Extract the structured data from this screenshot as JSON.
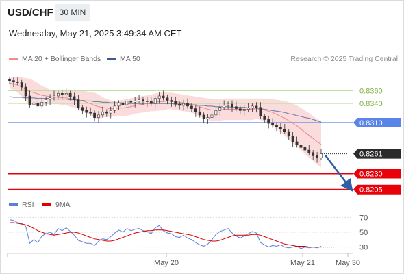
{
  "header": {
    "symbol": "USD/CHF",
    "timeframe": "30 MIN",
    "datetime": "Wednesday, May 21, 2025 3:49:34 AM CET",
    "copyright": "Research © 2025 Trading Central"
  },
  "legend_main": [
    {
      "label": "MA 20 + Bollinger Bands",
      "color": "#f08c8c"
    },
    {
      "label": "MA 50",
      "color": "#3b5b8c"
    }
  ],
  "legend_rsi": [
    {
      "label": "RSI",
      "color": "#5b7fd6"
    },
    {
      "label": "9MA",
      "color": "#e00000"
    }
  ],
  "colors": {
    "up_candle": "#ffffff",
    "down_candle": "#333333",
    "bollinger_fill": "#fbdcdc",
    "resistance_line": "#bfe0a0",
    "current_line": "#5b84e8",
    "support_line": "#e8000a",
    "arrow": "#2f5fa8"
  },
  "chart_data": [
    {
      "type": "line",
      "title": "",
      "description_type": "candlestick with MA 20, Bollinger Bands and MA 50",
      "ylim": [
        0.8195,
        0.8395
      ],
      "x_ticks": [
        "May 20",
        "May 21",
        "May 30"
      ],
      "levels": {
        "resistance": [
          0.836,
          0.834
        ],
        "pivot": 0.831,
        "current": 0.8261,
        "support": [
          0.823,
          0.8205
        ]
      },
      "level_labels": [
        "0.8360",
        "0.8340",
        "0.8310",
        "0.8261",
        "0.8230",
        "0.8205"
      ],
      "close": [
        0.8376,
        0.8374,
        0.8373,
        0.8366,
        0.8352,
        0.8338,
        0.8341,
        0.8336,
        0.8342,
        0.8346,
        0.8349,
        0.8352,
        0.8356,
        0.8354,
        0.8356,
        0.8351,
        0.8346,
        0.8334,
        0.8329,
        0.8326,
        0.8325,
        0.8318,
        0.8322,
        0.8327,
        0.8325,
        0.8329,
        0.8336,
        0.8341,
        0.8338,
        0.8344,
        0.8342,
        0.8344,
        0.8346,
        0.8344,
        0.8343,
        0.834,
        0.8348,
        0.8352,
        0.8349,
        0.8345,
        0.8343,
        0.8339,
        0.8337,
        0.834,
        0.8336,
        0.8332,
        0.8327,
        0.8322,
        0.8316,
        0.8318,
        0.8322,
        0.8329,
        0.8334,
        0.8337,
        0.8339,
        0.8335,
        0.8332,
        0.8329,
        0.8331,
        0.8333,
        0.8336,
        0.8334,
        0.832,
        0.8315,
        0.8309,
        0.8306,
        0.8303,
        0.83,
        0.8296,
        0.8289,
        0.828,
        0.8275,
        0.8271,
        0.8267,
        0.8263,
        0.8258,
        0.8255,
        0.8261
      ],
      "ma20": [
        0.8372,
        0.8371,
        0.8369,
        0.8366,
        0.8362,
        0.8359,
        0.8357,
        0.8355,
        0.8353,
        0.8352,
        0.8351,
        0.835,
        0.835,
        0.8349,
        0.8349,
        0.8348,
        0.8347,
        0.8346,
        0.8344,
        0.8342,
        0.834,
        0.8337,
        0.8335,
        0.8334,
        0.8333,
        0.8332,
        0.8332,
        0.8333,
        0.8333,
        0.8334,
        0.8335,
        0.8337,
        0.8338,
        0.8339,
        0.834,
        0.8341,
        0.8342,
        0.8343,
        0.8343,
        0.8344,
        0.8344,
        0.8343,
        0.8342,
        0.8341,
        0.834,
        0.8339,
        0.8337,
        0.8335,
        0.8333,
        0.8331,
        0.833,
        0.833,
        0.833,
        0.8331,
        0.8331,
        0.8331,
        0.8331,
        0.8331,
        0.8331,
        0.8331,
        0.8331,
        0.8332,
        0.8331,
        0.833,
        0.8328,
        0.8326,
        0.8323,
        0.832,
        0.8317,
        0.8313,
        0.8309,
        0.8305,
        0.83,
        0.8295,
        0.829,
        0.8285,
        0.828,
        0.8276
      ],
      "bb_upper": [
        0.838,
        0.8381,
        0.8381,
        0.8381,
        0.838,
        0.8379,
        0.8376,
        0.8372,
        0.8368,
        0.8365,
        0.8362,
        0.8361,
        0.8361,
        0.8361,
        0.8361,
        0.8361,
        0.836,
        0.836,
        0.836,
        0.8359,
        0.8358,
        0.8357,
        0.8354,
        0.835,
        0.8347,
        0.8345,
        0.8344,
        0.8345,
        0.8346,
        0.8347,
        0.8348,
        0.835,
        0.8351,
        0.8352,
        0.8353,
        0.8354,
        0.8356,
        0.8357,
        0.8357,
        0.8357,
        0.8357,
        0.8356,
        0.8355,
        0.8354,
        0.8353,
        0.8352,
        0.8351,
        0.835,
        0.8349,
        0.8348,
        0.8348,
        0.8347,
        0.8347,
        0.8348,
        0.8348,
        0.8348,
        0.8348,
        0.8348,
        0.8348,
        0.8348,
        0.8348,
        0.8348,
        0.8348,
        0.8348,
        0.8347,
        0.8347,
        0.8346,
        0.8345,
        0.8344,
        0.8342,
        0.834,
        0.8337,
        0.8333,
        0.8329,
        0.8325,
        0.832,
        0.8316,
        0.8312
      ],
      "bb_lower": [
        0.8364,
        0.8361,
        0.8357,
        0.8351,
        0.8344,
        0.8339,
        0.8338,
        0.8338,
        0.8338,
        0.8339,
        0.834,
        0.8339,
        0.8339,
        0.8337,
        0.8337,
        0.8335,
        0.8334,
        0.8332,
        0.8328,
        0.8325,
        0.8322,
        0.8317,
        0.8316,
        0.8318,
        0.8319,
        0.8319,
        0.832,
        0.8321,
        0.832,
        0.8321,
        0.8322,
        0.8324,
        0.8325,
        0.8326,
        0.8327,
        0.8328,
        0.8328,
        0.8329,
        0.8329,
        0.8331,
        0.8331,
        0.833,
        0.8329,
        0.8328,
        0.8327,
        0.8326,
        0.8323,
        0.832,
        0.8317,
        0.8314,
        0.8312,
        0.8313,
        0.8313,
        0.8314,
        0.8314,
        0.8314,
        0.8314,
        0.8314,
        0.8314,
        0.8314,
        0.8314,
        0.8316,
        0.8314,
        0.8312,
        0.8309,
        0.8305,
        0.83,
        0.8295,
        0.829,
        0.8284,
        0.8278,
        0.8273,
        0.8267,
        0.8261,
        0.8255,
        0.825,
        0.8244,
        0.824
      ],
      "ma50": [
        0.8351,
        0.835,
        0.835,
        0.835,
        0.8349,
        0.8349,
        0.8349,
        0.8348,
        0.8348,
        0.8348,
        0.8348,
        0.8347,
        0.8347,
        0.8347,
        0.8347,
        0.8346,
        0.8346,
        0.8345,
        0.8345,
        0.8344,
        0.8344,
        0.8343,
        0.8343,
        0.8342,
        0.8342,
        0.8341,
        0.8341,
        0.8341,
        0.8341,
        0.834,
        0.834,
        0.834,
        0.834,
        0.834,
        0.834,
        0.834,
        0.834,
        0.834,
        0.834,
        0.834,
        0.834,
        0.8339,
        0.8339,
        0.8339,
        0.8339,
        0.8338,
        0.8338,
        0.8337,
        0.8337,
        0.8336,
        0.8336,
        0.8335,
        0.8335,
        0.8335,
        0.8335,
        0.8334,
        0.8334,
        0.8334,
        0.8334,
        0.8333,
        0.8333,
        0.8333,
        0.8332,
        0.8331,
        0.833,
        0.8329,
        0.8328,
        0.8327,
        0.8326,
        0.8324,
        0.8323,
        0.8321,
        0.832,
        0.8318,
        0.8317,
        0.8315,
        0.8313,
        0.8311
      ]
    },
    {
      "type": "line",
      "title": "",
      "series_note": "RSI panel",
      "ylim": [
        25,
        75
      ],
      "y_ticks": [
        70,
        50,
        30
      ],
      "series": [
        {
          "name": "RSI",
          "values": [
            67,
            66,
            63,
            62,
            58,
            35,
            40,
            36,
            45,
            48,
            50,
            47,
            55,
            52,
            56,
            51,
            46,
            39,
            37,
            35,
            35,
            32,
            38,
            41,
            40,
            44,
            49,
            53,
            50,
            55,
            52,
            54,
            55,
            52,
            51,
            48,
            56,
            59,
            52,
            49,
            48,
            44,
            43,
            46,
            42,
            40,
            36,
            33,
            31,
            34,
            40,
            47,
            51,
            53,
            55,
            49,
            45,
            42,
            45,
            48,
            51,
            49,
            36,
            33,
            30,
            32,
            31,
            33,
            30,
            29,
            30,
            31,
            28,
            30,
            29,
            30,
            29,
            31
          ]
        },
        {
          "name": "9MA",
          "values": [
            63,
            63,
            62,
            61,
            60,
            58,
            55,
            52,
            50,
            48,
            47,
            46,
            47,
            48,
            49,
            50,
            50,
            49,
            47,
            45,
            43,
            41,
            40,
            39,
            38,
            38,
            39,
            41,
            43,
            45,
            47,
            49,
            50,
            51,
            52,
            52,
            53,
            53,
            53,
            52,
            51,
            50,
            49,
            48,
            47,
            46,
            44,
            42,
            40,
            39,
            38,
            38,
            39,
            41,
            43,
            45,
            46,
            46,
            46,
            46,
            47,
            47,
            46,
            44,
            42,
            40,
            38,
            36,
            34,
            33,
            32,
            31,
            31,
            31,
            30,
            30,
            30,
            30
          ]
        }
      ]
    }
  ],
  "rsi_tick_labels": [
    "70",
    "50",
    "30"
  ],
  "x_tick_labels": [
    "May 20",
    "May 21",
    "May 30"
  ]
}
